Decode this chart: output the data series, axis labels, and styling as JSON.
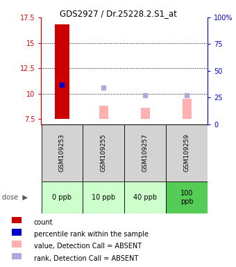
{
  "title": "GDS2927 / Dr.25228.2.S1_at",
  "samples": [
    "GSM109253",
    "GSM109255",
    "GSM109257",
    "GSM109259"
  ],
  "doses": [
    "0 ppb",
    "10 ppb",
    "40 ppb",
    "100\nppb"
  ],
  "dose_colors": [
    "#ccffcc",
    "#ccffcc",
    "#ccffcc",
    "#55cc55"
  ],
  "ylim_left": [
    7.0,
    17.5
  ],
  "ylim_right": [
    0,
    100
  ],
  "yticks_left": [
    7.5,
    10.0,
    12.5,
    15.0,
    17.5
  ],
  "ytick_labels_left": [
    "7.5",
    "10",
    "12.5",
    "15",
    "17.5"
  ],
  "yticks_right": [
    0,
    25,
    50,
    75,
    100
  ],
  "ytick_labels_right": [
    "0",
    "25",
    "50",
    "75",
    "100%"
  ],
  "grid_yticks": [
    10.0,
    12.5,
    15.0
  ],
  "red_bars": {
    "GSM109253": [
      7.5,
      16.8
    ]
  },
  "pink_bars": {
    "GSM109255": [
      7.5,
      8.8
    ],
    "GSM109257": [
      7.5,
      8.6
    ],
    "GSM109259": [
      7.5,
      9.5
    ]
  },
  "blue_squares": {
    "GSM109253": 10.9
  },
  "lavender_squares": {
    "GSM109255": 10.6,
    "GSM109257": 9.85,
    "GSM109259": 9.85
  },
  "legend_items": [
    {
      "color": "#cc0000",
      "label": "count"
    },
    {
      "color": "#0000cc",
      "label": "percentile rank within the sample"
    },
    {
      "color": "#ffb0b0",
      "label": "value, Detection Call = ABSENT"
    },
    {
      "color": "#aaaadd",
      "label": "rank, Detection Call = ABSENT"
    }
  ]
}
